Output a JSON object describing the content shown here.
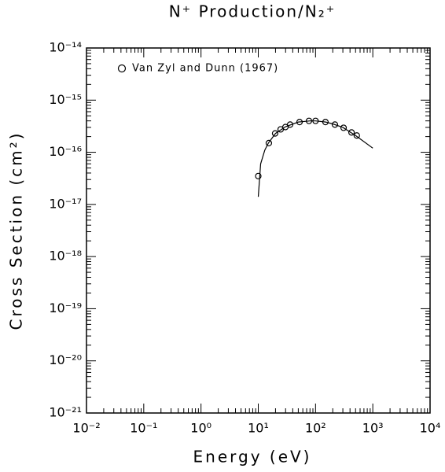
{
  "chart_data": {
    "type": "scatter-line",
    "title": "N⁺ Production/N₂⁺",
    "x_label": "Energy (eV)",
    "y_label": "Cross Section (cm²)",
    "log_x": true,
    "log_y": true,
    "xlim": [
      0.01,
      10000
    ],
    "ylim": [
      1e-21,
      1e-14
    ],
    "xticks": [
      {
        "value": 0.01,
        "label": "10⁻²"
      },
      {
        "value": 0.1,
        "label": "10⁻¹"
      },
      {
        "value": 1,
        "label": "10⁰"
      },
      {
        "value": 10,
        "label": "10¹"
      },
      {
        "value": 100,
        "label": "10²"
      },
      {
        "value": 1000,
        "label": "10³"
      },
      {
        "value": 10000,
        "label": "10⁴"
      }
    ],
    "yticks": [
      {
        "value": 1e-21,
        "label": "10⁻²¹"
      },
      {
        "value": 1e-20,
        "label": "10⁻²⁰"
      },
      {
        "value": 1e-19,
        "label": "10⁻¹⁹"
      },
      {
        "value": 1e-18,
        "label": "10⁻¹⁸"
      },
      {
        "value": 1e-17,
        "label": "10⁻¹⁷"
      },
      {
        "value": 1e-16,
        "label": "10⁻¹⁶"
      },
      {
        "value": 1e-15,
        "label": "10⁻¹⁵"
      },
      {
        "value": 1e-14,
        "label": "10⁻¹⁴"
      }
    ],
    "legend_position": "upper left",
    "series": [
      {
        "name": "Van Zyl and Dunn (1967)",
        "kind": "points",
        "color": "#000000",
        "x": [
          10,
          15.3,
          19.7,
          24.6,
          29.8,
          36,
          52.6,
          76.8,
          100,
          149,
          218,
          309,
          425,
          525
        ],
        "values": [
          3.5e-17,
          1.5e-16,
          2.3e-16,
          2.75e-16,
          3.05e-16,
          3.4e-16,
          3.8e-16,
          4e-16,
          4e-16,
          3.8e-16,
          3.4e-16,
          2.95e-16,
          2.4e-16,
          2.1e-16
        ]
      },
      {
        "kind": "line",
        "color": "#000000",
        "x": [
          10,
          11,
          13,
          15,
          20,
          30,
          50,
          80,
          100,
          150,
          200,
          300,
          500,
          1000
        ],
        "values": [
          1.4e-17,
          6e-17,
          1.1e-16,
          1.5e-16,
          2.3e-16,
          3.1e-16,
          3.8e-16,
          4e-16,
          4e-16,
          3.8e-16,
          3.5e-16,
          3e-16,
          2.1e-16,
          1.2e-16
        ]
      }
    ]
  }
}
